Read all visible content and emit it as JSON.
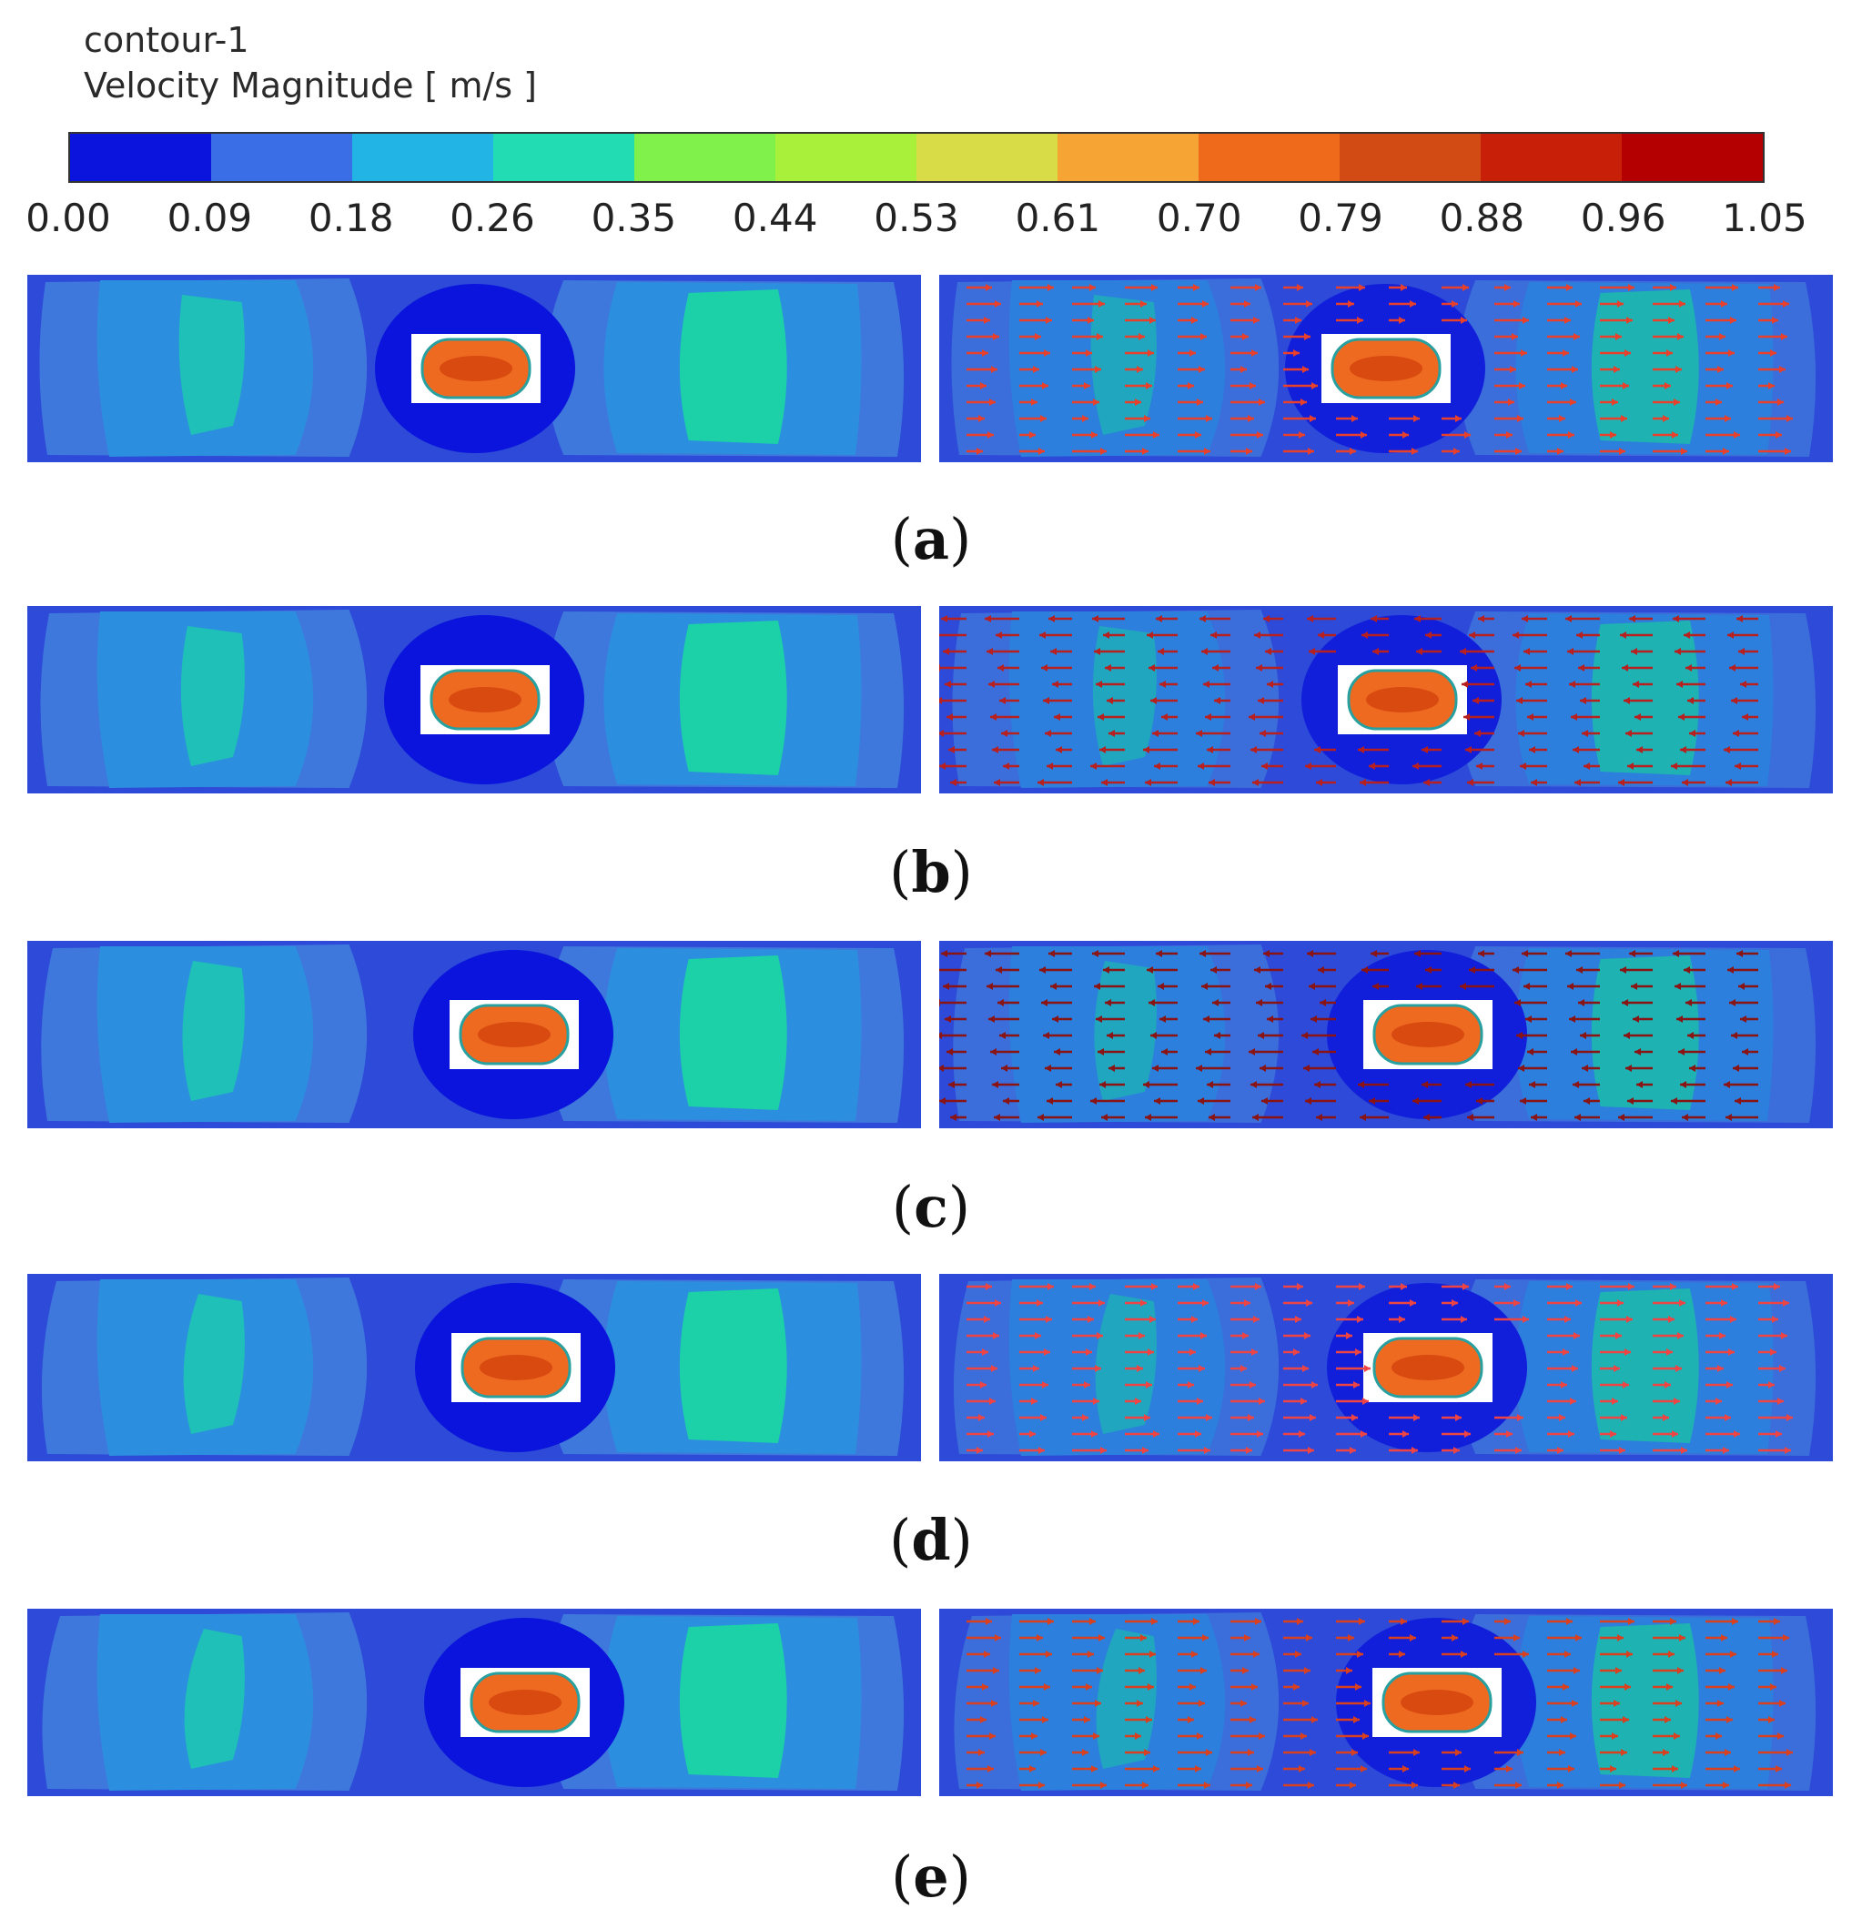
{
  "legend": {
    "title": "contour-1",
    "subtitle": "Velocity Magnitude [ m/s ]",
    "ticks": [
      "0.00",
      "0.09",
      "0.18",
      "0.26",
      "0.35",
      "0.44",
      "0.53",
      "0.61",
      "0.70",
      "0.79",
      "0.88",
      "0.96",
      "1.05"
    ],
    "colors": [
      "#0a14dc",
      "#3a6ee6",
      "#22b4e4",
      "#22dcb4",
      "#80f04a",
      "#a8f03a",
      "#d8dc46",
      "#f6a434",
      "#f06a1c",
      "#d24a14",
      "#c82008",
      "#b40000"
    ]
  },
  "rows": [
    {
      "label_open": "(",
      "letter": "a",
      "label_close": ")",
      "arrow_color": "#e8402a"
    },
    {
      "label_open": "(",
      "letter": "b",
      "label_close": ")",
      "arrow_color": "#b82020"
    },
    {
      "label_open": "(",
      "letter": "c",
      "label_close": ")",
      "arrow_color": "#8a1414"
    },
    {
      "label_open": "(",
      "letter": "d",
      "label_close": ")",
      "arrow_color": "#ef4444"
    },
    {
      "label_open": "(",
      "letter": "e",
      "label_close": ")",
      "arrow_color": "#d84020"
    }
  ],
  "field_colors": {
    "outer": "#2d4ad8",
    "band1": "#3f78dc",
    "band2": "#2c8ede",
    "band3": "#1ec0b8",
    "core": "#1cd0a8",
    "wake": "#0a14dc",
    "obstacle_box": "#ffffff",
    "obstacle_fill": "#ee6a20",
    "obstacle_inner": "#d84a10"
  }
}
